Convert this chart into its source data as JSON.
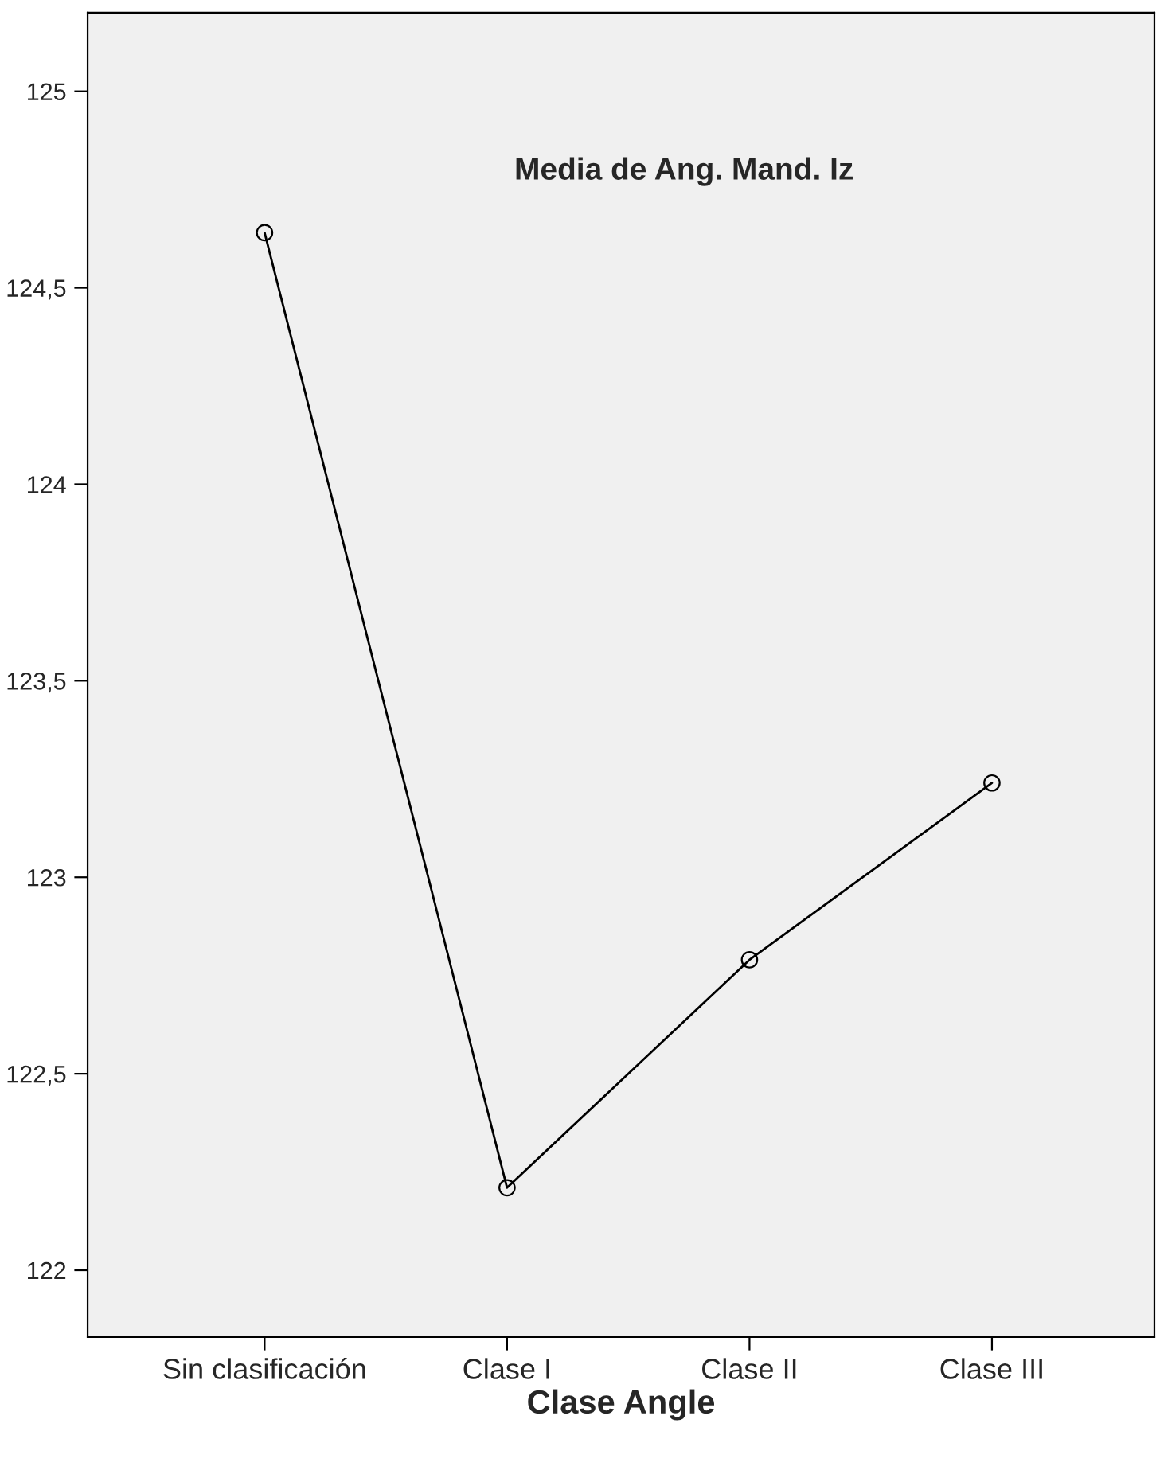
{
  "chart_data": {
    "type": "line",
    "xlabel": "Clase Angle",
    "categories": [
      "Sin clasificación",
      "Clase I",
      "Clase II",
      "Clase III"
    ],
    "series": [
      {
        "color": "#000000",
        "values": [
          124.64,
          122.21,
          122.79,
          123.24
        ]
      }
    ],
    "ylim": [
      121.83,
      125.2
    ],
    "yticks": [
      122,
      {
        "value": 122.5,
        "label": "122,5"
      },
      123,
      {
        "value": 123.5,
        "label": "123,5"
      },
      124,
      {
        "value": 124.5,
        "label": "124,5"
      },
      125
    ],
    "annotations": [
      "Media de Ang. Mand. Iz"
    ],
    "marker": "circle",
    "line_style": "solid",
    "grid": false,
    "legend": false
  }
}
